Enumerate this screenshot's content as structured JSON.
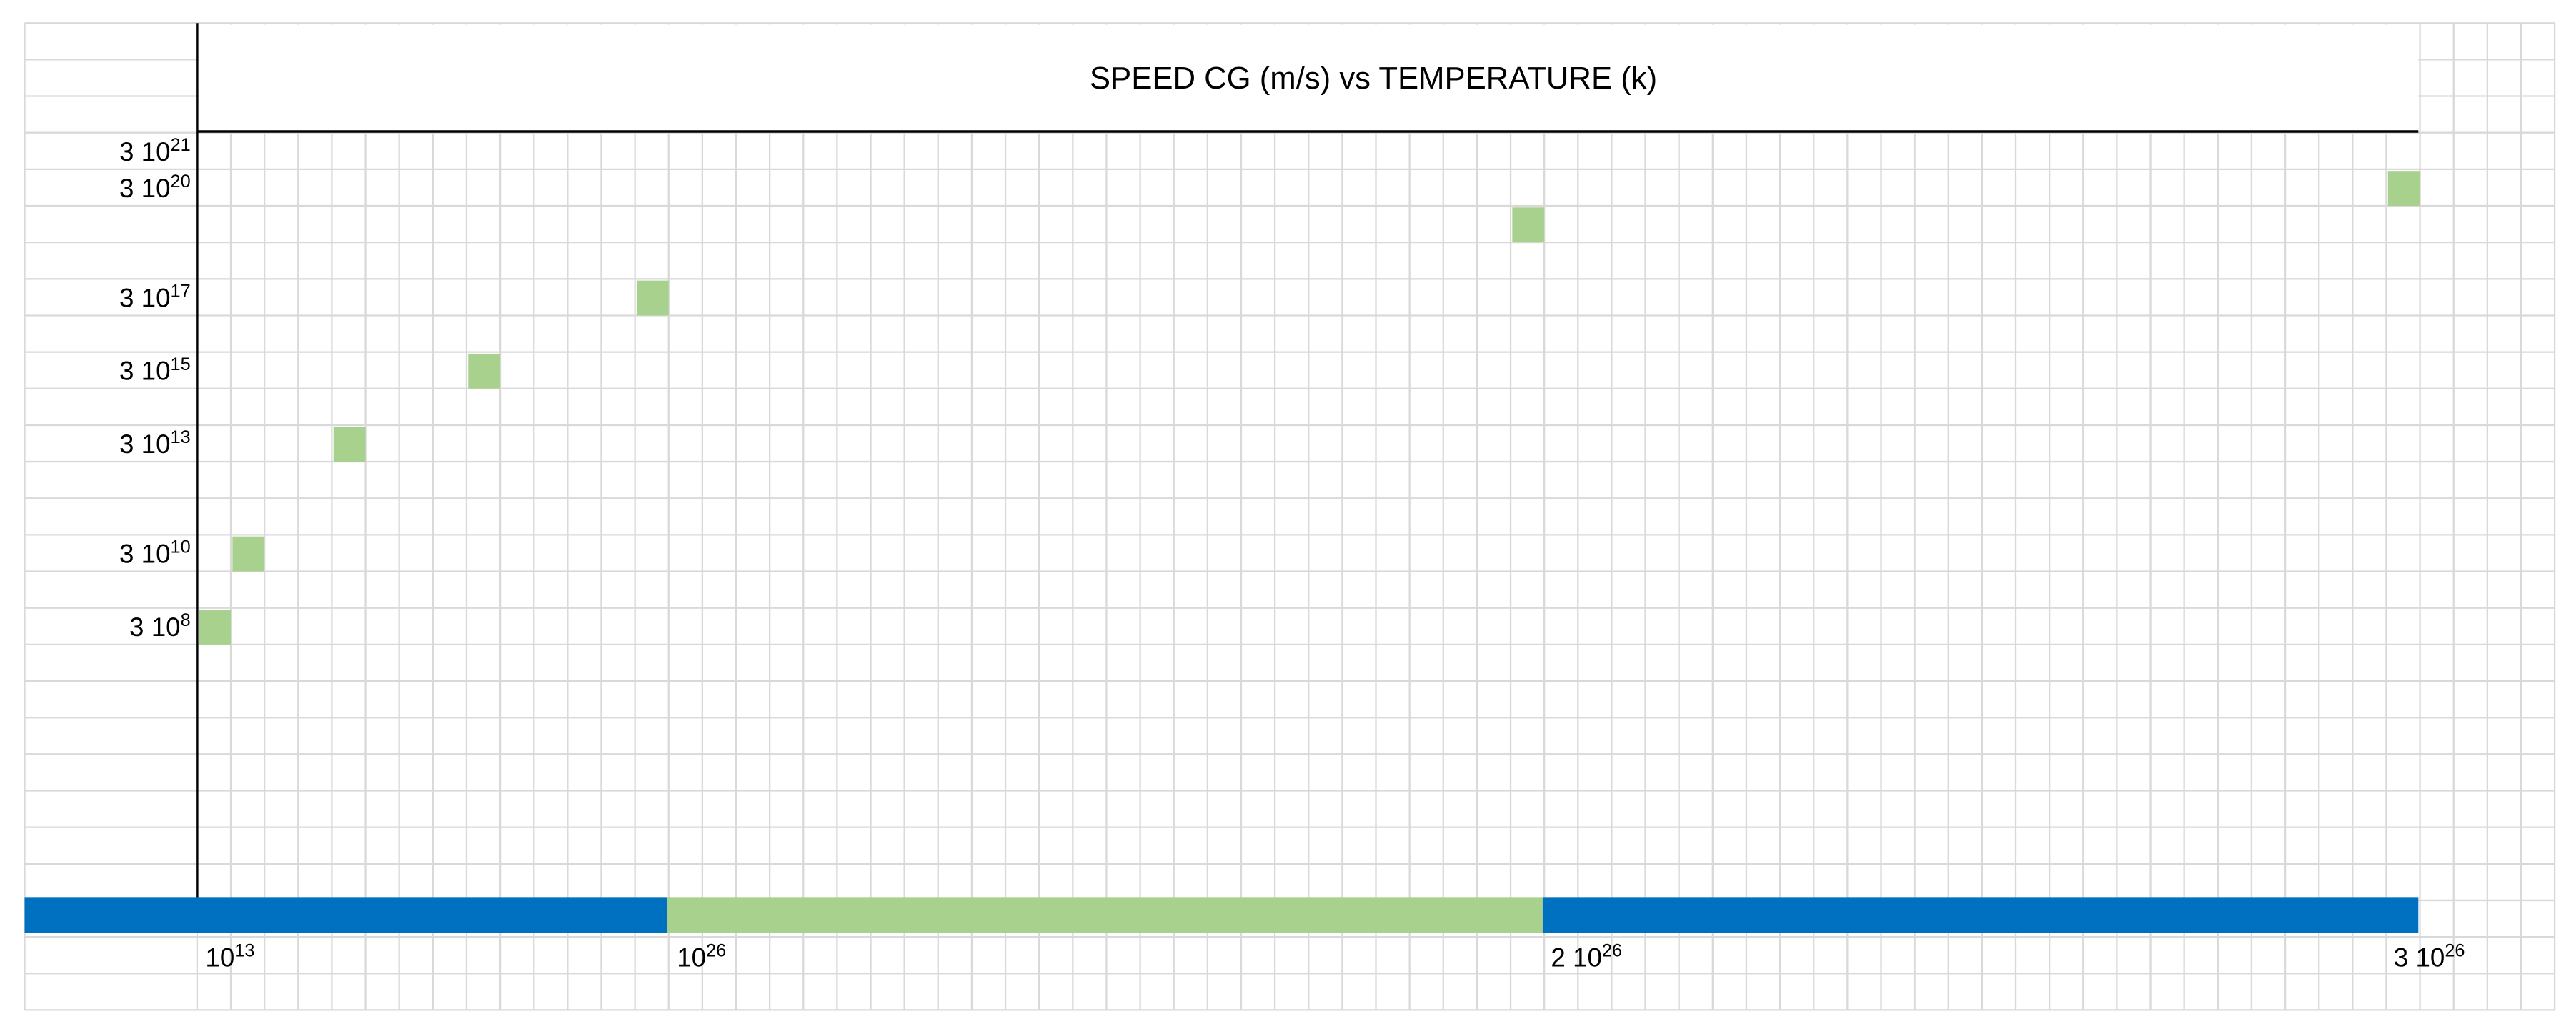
{
  "title": "SPEED CG (m/s) vs TEMPERATURE (k)",
  "y_labels": [
    {
      "base": "3 10",
      "exp": "21"
    },
    {
      "base": "3 10",
      "exp": "20"
    },
    {
      "base": "3 10",
      "exp": "17"
    },
    {
      "base": "3 10",
      "exp": "15"
    },
    {
      "base": "3 10",
      "exp": "13"
    },
    {
      "base": "3 10",
      "exp": "10"
    },
    {
      "base": "3  10",
      "exp": "8"
    }
  ],
  "x_labels": [
    {
      "base": "10",
      "exp": "13"
    },
    {
      "base": "10",
      "exp": "26"
    },
    {
      "base": "2 10",
      "exp": "26"
    },
    {
      "base": "3 10",
      "exp": "26"
    }
  ]
}
